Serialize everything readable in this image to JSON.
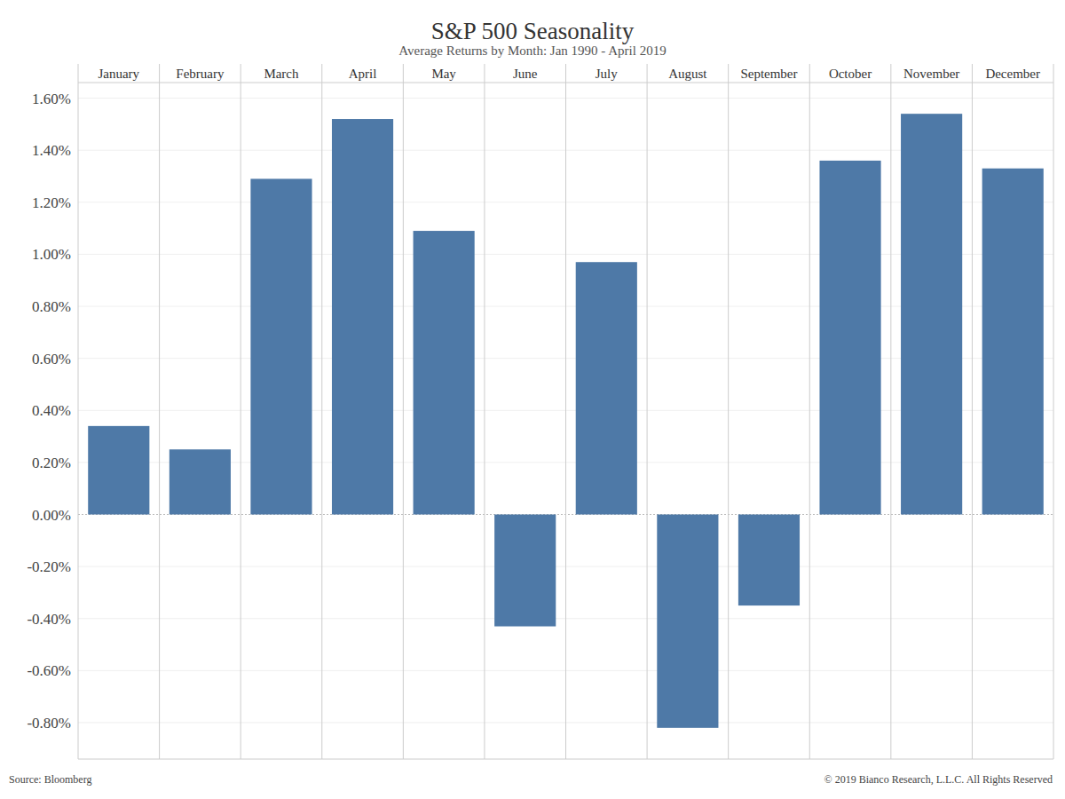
{
  "chart_data": {
    "type": "bar",
    "title": "S&P 500 Seasonality",
    "subtitle": "Average Returns by Month: Jan 1990 - April 2019",
    "categories": [
      "January",
      "February",
      "March",
      "April",
      "May",
      "June",
      "July",
      "August",
      "September",
      "October",
      "November",
      "December"
    ],
    "values": [
      0.34,
      0.25,
      1.29,
      1.52,
      1.09,
      -0.43,
      0.97,
      -0.82,
      -0.35,
      1.36,
      1.54,
      1.33
    ],
    "color": "#4e79a7",
    "ylim": [
      -0.94,
      1.66
    ],
    "yticks": [
      {
        "value": -0.8,
        "label": "-0.80%"
      },
      {
        "value": -0.6,
        "label": "-0.60%"
      },
      {
        "value": -0.4,
        "label": "-0.40%"
      },
      {
        "value": -0.2,
        "label": "-0.20%"
      },
      {
        "value": 0,
        "label": "0.00%"
      },
      {
        "value": 0.2,
        "label": "0.20%"
      },
      {
        "value": 0.4,
        "label": "0.40%"
      },
      {
        "value": 0.6,
        "label": "0.60%"
      },
      {
        "value": 0.8,
        "label": "0.80%"
      },
      {
        "value": 1.0,
        "label": "1.00%"
      },
      {
        "value": 1.2,
        "label": "1.20%"
      },
      {
        "value": 1.4,
        "label": "1.40%"
      },
      {
        "value": 1.6,
        "label": "1.60%"
      }
    ],
    "grid": true,
    "annotations": [
      "Source: Bloomberg",
      "© 2019 Bianco Research, L.L.C. All Rights Reserved"
    ]
  }
}
